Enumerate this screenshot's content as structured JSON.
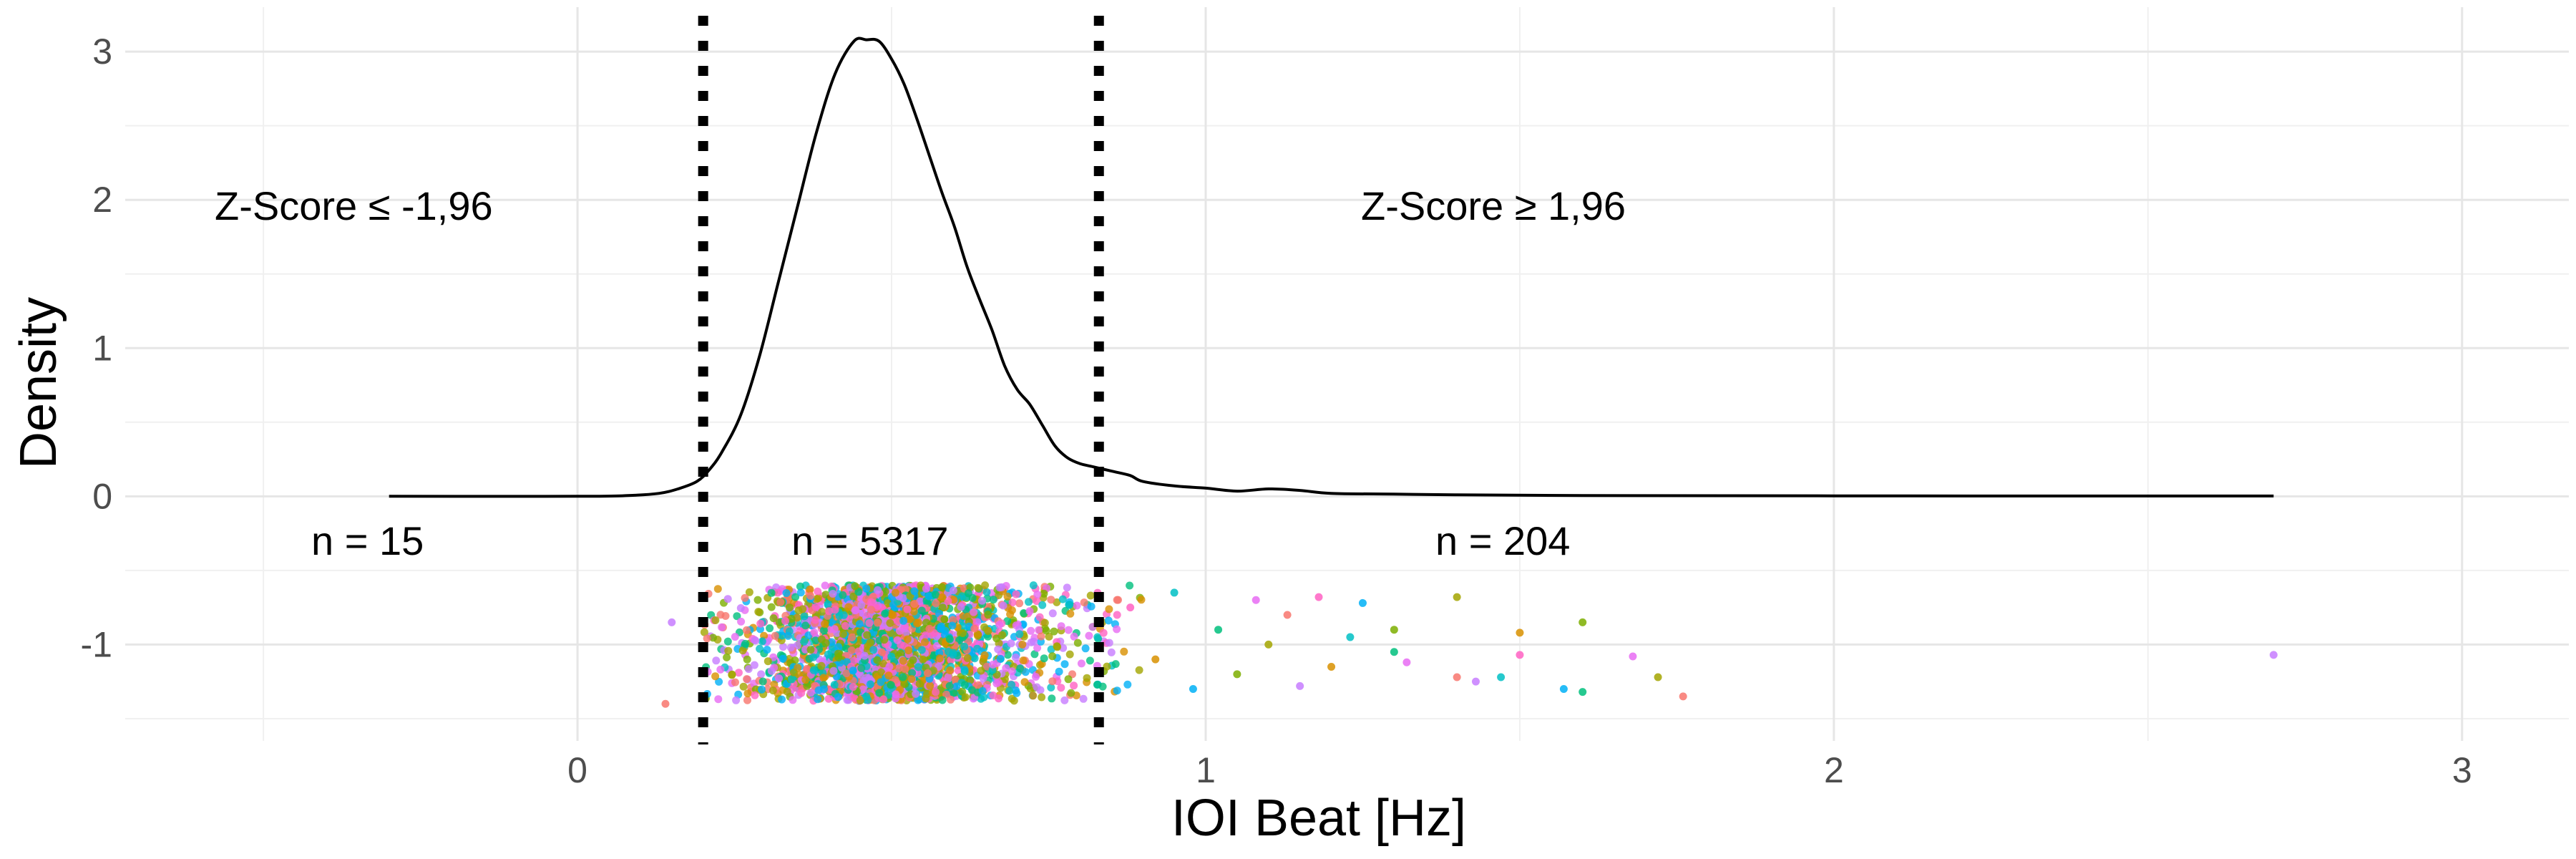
{
  "chart_data": {
    "type": "density-with-jitter",
    "title": "",
    "xlabel": "IOI Beat [Hz]",
    "ylabel": "Density",
    "xlim": [
      -0.72,
      3.17
    ],
    "ylim": [
      -1.65,
      3.3
    ],
    "x_ticks": [
      0,
      1,
      2,
      3
    ],
    "y_ticks": [
      -1,
      0,
      1,
      2,
      3
    ],
    "grid": true,
    "thresholds": [
      0.2,
      0.83
    ],
    "density_curve": {
      "x": [
        -0.3,
        0.0,
        0.08,
        0.13,
        0.16,
        0.19,
        0.21,
        0.23,
        0.26,
        0.29,
        0.32,
        0.35,
        0.38,
        0.41,
        0.44,
        0.46,
        0.48,
        0.5,
        0.52,
        0.54,
        0.56,
        0.58,
        0.6,
        0.62,
        0.64,
        0.66,
        0.68,
        0.7,
        0.72,
        0.74,
        0.76,
        0.78,
        0.8,
        0.82,
        0.85,
        0.88,
        0.9,
        0.95,
        1.0,
        1.05,
        1.1,
        1.15,
        1.2,
        1.3,
        1.4,
        1.6,
        2.0,
        2.5,
        2.7
      ],
      "y": [
        0.0,
        0.0,
        0.005,
        0.02,
        0.05,
        0.1,
        0.18,
        0.3,
        0.55,
        0.95,
        1.45,
        1.95,
        2.45,
        2.85,
        3.07,
        3.08,
        3.07,
        2.95,
        2.78,
        2.55,
        2.3,
        2.05,
        1.82,
        1.55,
        1.33,
        1.12,
        0.88,
        0.72,
        0.62,
        0.48,
        0.34,
        0.26,
        0.22,
        0.2,
        0.17,
        0.14,
        0.1,
        0.07,
        0.055,
        0.035,
        0.05,
        0.04,
        0.02,
        0.015,
        0.01,
        0.005,
        0.003,
        0.002,
        0.002
      ]
    },
    "jitter_points": {
      "y_range": [
        -1.38,
        -0.6
      ],
      "colors": [
        "#F8766D",
        "#7CAE00",
        "#00BFC4",
        "#C77CFF",
        "#E76BF3",
        "#00B0F6",
        "#FF61C3",
        "#A3A500",
        "#00BF7D",
        "#D89000"
      ],
      "n_shown": 2600,
      "outliers": [
        {
          "x": 0.14,
          "y": -1.4
        },
        {
          "x": 0.15,
          "y": -0.85
        },
        {
          "x": 0.88,
          "y": -0.75
        },
        {
          "x": 0.92,
          "y": -1.1
        },
        {
          "x": 0.95,
          "y": -0.65
        },
        {
          "x": 0.98,
          "y": -1.3
        },
        {
          "x": 1.02,
          "y": -0.9
        },
        {
          "x": 1.05,
          "y": -1.2
        },
        {
          "x": 1.08,
          "y": -0.7
        },
        {
          "x": 1.1,
          "y": -1.0
        },
        {
          "x": 1.13,
          "y": -0.8
        },
        {
          "x": 1.15,
          "y": -1.28
        },
        {
          "x": 1.18,
          "y": -0.68
        },
        {
          "x": 1.2,
          "y": -1.15
        },
        {
          "x": 1.23,
          "y": -0.95
        },
        {
          "x": 1.25,
          "y": -0.72
        },
        {
          "x": 1.3,
          "y": -1.05
        },
        {
          "x": 1.3,
          "y": -0.9
        },
        {
          "x": 1.32,
          "y": -1.12
        },
        {
          "x": 1.4,
          "y": -0.68
        },
        {
          "x": 1.4,
          "y": -1.22
        },
        {
          "x": 1.43,
          "y": -1.25
        },
        {
          "x": 1.5,
          "y": -1.07
        },
        {
          "x": 1.5,
          "y": -0.92
        },
        {
          "x": 1.47,
          "y": -1.22
        },
        {
          "x": 1.57,
          "y": -1.3
        },
        {
          "x": 1.6,
          "y": -1.32
        },
        {
          "x": 1.6,
          "y": -0.85
        },
        {
          "x": 1.68,
          "y": -1.08
        },
        {
          "x": 1.72,
          "y": -1.22
        },
        {
          "x": 1.76,
          "y": -1.35
        },
        {
          "x": 2.7,
          "y": -1.07
        }
      ]
    },
    "annotations": {
      "left_label": "Z-Score  ≤ -1,96",
      "right_label": "Z-Score  ≥ 1,96",
      "n_left": "n = 15",
      "n_mid": "n = 5317",
      "n_right": "n = 204"
    }
  }
}
